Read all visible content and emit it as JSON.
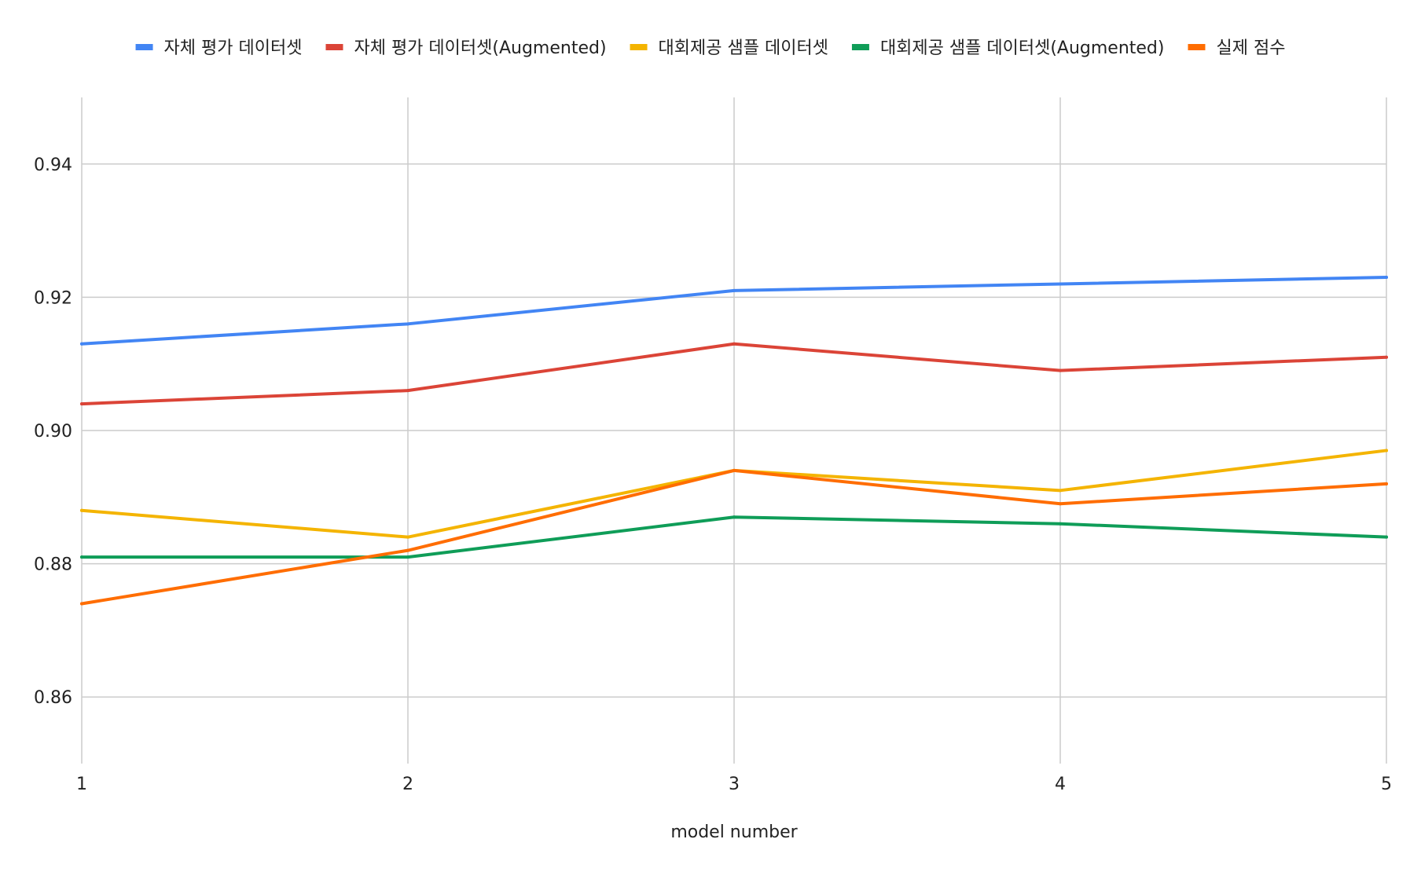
{
  "chart_data": {
    "type": "line",
    "title": "",
    "xlabel": "model number",
    "ylabel": "",
    "x": [
      1,
      2,
      3,
      4,
      5
    ],
    "ylim": [
      0.85,
      0.95
    ],
    "yticks": [
      "0.86",
      "0.88",
      "0.90",
      "0.92",
      "0.94"
    ],
    "grid": true,
    "legend_position": "top",
    "series": [
      {
        "name": "자체 평가 데이터셋",
        "color": "#4285F4",
        "values": [
          0.913,
          0.916,
          0.921,
          0.922,
          0.923
        ]
      },
      {
        "name": "자체 평가 데이터셋(Augmented)",
        "color": "#DB4437",
        "values": [
          0.904,
          0.906,
          0.913,
          0.909,
          0.911
        ]
      },
      {
        "name": "대회제공 샘플 데이터셋",
        "color": "#F4B400",
        "values": [
          0.888,
          0.884,
          0.894,
          0.891,
          0.897
        ]
      },
      {
        "name": "대회제공 샘플 데이터셋(Augmented)",
        "color": "#0F9D58",
        "values": [
          0.881,
          0.881,
          0.887,
          0.886,
          0.884
        ]
      },
      {
        "name": "실제 점수",
        "color": "#FF6D01",
        "values": [
          0.874,
          0.882,
          0.894,
          0.889,
          0.892
        ]
      }
    ]
  }
}
